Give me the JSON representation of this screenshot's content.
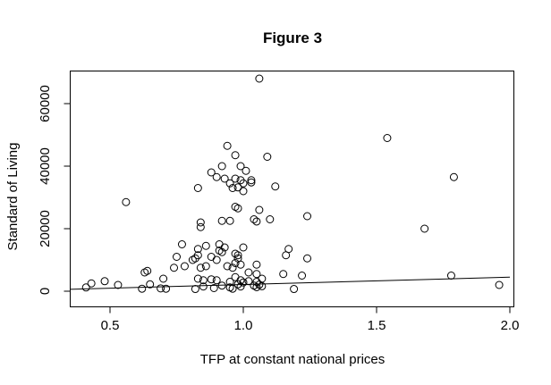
{
  "chart_data": {
    "type": "scatter",
    "title": "Figure 3",
    "xlabel": "TFP at constant national prices",
    "ylabel": "Standard of Living",
    "xlim": [
      0.35,
      2.0
    ],
    "ylim": [
      0,
      70000
    ],
    "x_ticks": [
      0.5,
      1.0,
      1.5,
      2.0
    ],
    "x_tick_labels": [
      "0.5",
      "1.0",
      "1.5",
      "2.0"
    ],
    "y_ticks": [
      0,
      20000,
      40000,
      60000
    ],
    "y_tick_labels": [
      "0",
      "20000",
      "40000",
      "60000"
    ],
    "grid": false,
    "legend": "none",
    "fit_line": {
      "x": [
        0.35,
        2.0
      ],
      "y": [
        600,
        4500
      ]
    },
    "points": [
      {
        "x": 1.06,
        "y": 68000
      },
      {
        "x": 1.54,
        "y": 49000
      },
      {
        "x": 1.79,
        "y": 36500
      },
      {
        "x": 0.94,
        "y": 46500
      },
      {
        "x": 0.97,
        "y": 43500
      },
      {
        "x": 1.09,
        "y": 43000
      },
      {
        "x": 0.92,
        "y": 40000
      },
      {
        "x": 0.99,
        "y": 40000
      },
      {
        "x": 1.01,
        "y": 38500
      },
      {
        "x": 0.88,
        "y": 38000
      },
      {
        "x": 0.9,
        "y": 36500
      },
      {
        "x": 0.93,
        "y": 36000
      },
      {
        "x": 0.97,
        "y": 36000
      },
      {
        "x": 0.99,
        "y": 35500
      },
      {
        "x": 1.03,
        "y": 35500
      },
      {
        "x": 0.95,
        "y": 34500
      },
      {
        "x": 1.0,
        "y": 34500
      },
      {
        "x": 1.03,
        "y": 34800
      },
      {
        "x": 0.96,
        "y": 33000
      },
      {
        "x": 0.98,
        "y": 33200
      },
      {
        "x": 1.12,
        "y": 33500
      },
      {
        "x": 0.83,
        "y": 33000
      },
      {
        "x": 1.0,
        "y": 32000
      },
      {
        "x": 0.56,
        "y": 28500
      },
      {
        "x": 0.97,
        "y": 27000
      },
      {
        "x": 0.98,
        "y": 26500
      },
      {
        "x": 1.06,
        "y": 26000
      },
      {
        "x": 1.24,
        "y": 24000
      },
      {
        "x": 1.04,
        "y": 23000
      },
      {
        "x": 1.1,
        "y": 23000
      },
      {
        "x": 0.95,
        "y": 22500
      },
      {
        "x": 0.92,
        "y": 22500
      },
      {
        "x": 1.05,
        "y": 22300
      },
      {
        "x": 0.84,
        "y": 22000
      },
      {
        "x": 0.84,
        "y": 20500
      },
      {
        "x": 1.68,
        "y": 20000
      },
      {
        "x": 0.77,
        "y": 15000
      },
      {
        "x": 0.91,
        "y": 15000
      },
      {
        "x": 0.93,
        "y": 14000
      },
      {
        "x": 0.86,
        "y": 14500
      },
      {
        "x": 1.0,
        "y": 14000
      },
      {
        "x": 0.83,
        "y": 13500
      },
      {
        "x": 0.91,
        "y": 13000
      },
      {
        "x": 0.92,
        "y": 12500
      },
      {
        "x": 1.17,
        "y": 13500
      },
      {
        "x": 0.97,
        "y": 12000
      },
      {
        "x": 0.98,
        "y": 11500
      },
      {
        "x": 0.98,
        "y": 10500
      },
      {
        "x": 0.75,
        "y": 11000
      },
      {
        "x": 0.82,
        "y": 10500
      },
      {
        "x": 0.83,
        "y": 11500
      },
      {
        "x": 0.88,
        "y": 11000
      },
      {
        "x": 0.9,
        "y": 10000
      },
      {
        "x": 1.16,
        "y": 11500
      },
      {
        "x": 1.24,
        "y": 10500
      },
      {
        "x": 0.63,
        "y": 6000
      },
      {
        "x": 0.64,
        "y": 6500
      },
      {
        "x": 0.74,
        "y": 7500
      },
      {
        "x": 0.78,
        "y": 8000
      },
      {
        "x": 0.84,
        "y": 7500
      },
      {
        "x": 0.86,
        "y": 8000
      },
      {
        "x": 0.94,
        "y": 8000
      },
      {
        "x": 0.96,
        "y": 7500
      },
      {
        "x": 1.05,
        "y": 8500
      },
      {
        "x": 0.97,
        "y": 9000
      },
      {
        "x": 0.99,
        "y": 8500
      },
      {
        "x": 0.81,
        "y": 10000
      },
      {
        "x": 1.02,
        "y": 6000
      },
      {
        "x": 1.05,
        "y": 5500
      },
      {
        "x": 1.15,
        "y": 5500
      },
      {
        "x": 1.22,
        "y": 5000
      },
      {
        "x": 1.78,
        "y": 5000
      },
      {
        "x": 0.83,
        "y": 4000
      },
      {
        "x": 0.85,
        "y": 3500
      },
      {
        "x": 0.88,
        "y": 3800
      },
      {
        "x": 0.9,
        "y": 3500
      },
      {
        "x": 0.95,
        "y": 3000
      },
      {
        "x": 0.97,
        "y": 4500
      },
      {
        "x": 0.99,
        "y": 3500
      },
      {
        "x": 1.02,
        "y": 3200
      },
      {
        "x": 1.05,
        "y": 3000
      },
      {
        "x": 1.07,
        "y": 4000
      },
      {
        "x": 0.48,
        "y": 3200
      },
      {
        "x": 0.43,
        "y": 2500
      },
      {
        "x": 0.41,
        "y": 1200
      },
      {
        "x": 0.53,
        "y": 2000
      },
      {
        "x": 0.62,
        "y": 800
      },
      {
        "x": 0.65,
        "y": 2200
      },
      {
        "x": 0.69,
        "y": 900
      },
      {
        "x": 0.7,
        "y": 4000
      },
      {
        "x": 0.71,
        "y": 800
      },
      {
        "x": 0.82,
        "y": 700
      },
      {
        "x": 0.85,
        "y": 1500
      },
      {
        "x": 0.89,
        "y": 1000
      },
      {
        "x": 0.92,
        "y": 1800
      },
      {
        "x": 0.95,
        "y": 1200
      },
      {
        "x": 0.96,
        "y": 800
      },
      {
        "x": 0.98,
        "y": 2200
      },
      {
        "x": 0.99,
        "y": 1500
      },
      {
        "x": 1.0,
        "y": 2800
      },
      {
        "x": 1.04,
        "y": 1800
      },
      {
        "x": 1.05,
        "y": 1300
      },
      {
        "x": 1.06,
        "y": 2100
      },
      {
        "x": 1.07,
        "y": 1600
      },
      {
        "x": 1.19,
        "y": 700
      },
      {
        "x": 1.96,
        "y": 2000
      }
    ]
  }
}
